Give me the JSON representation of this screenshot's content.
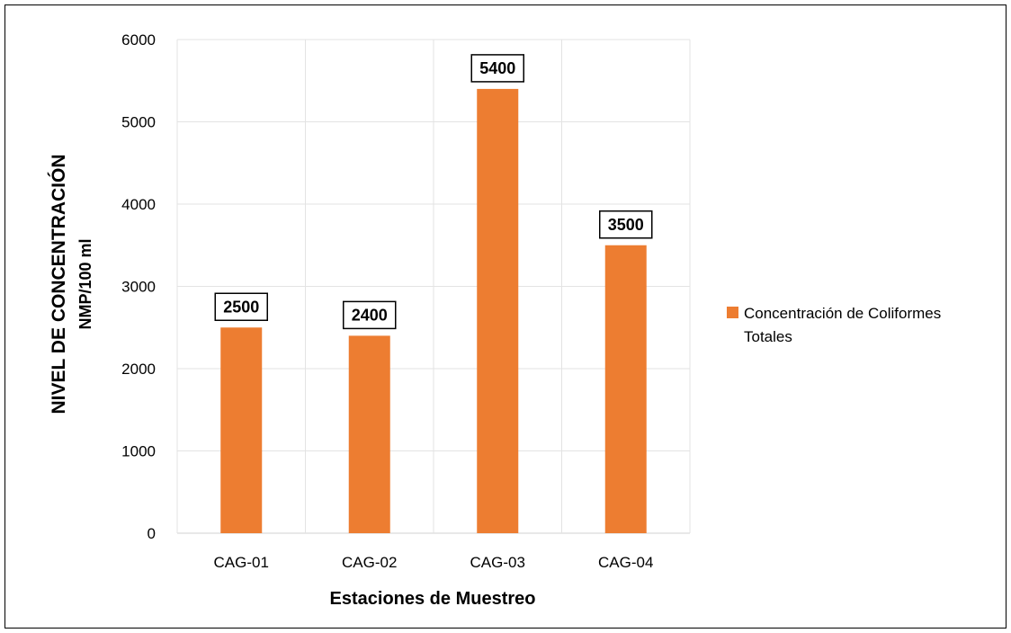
{
  "chart_data": {
    "type": "bar",
    "categories": [
      "CAG-01",
      "CAG-02",
      "CAG-03",
      "CAG-04"
    ],
    "series": [
      {
        "name": "Concentración de Coliformes Totales",
        "values": [
          2500,
          2400,
          5400,
          3500
        ],
        "color": "#ED7D31"
      }
    ],
    "data_labels": [
      "2500",
      "2400",
      "5400",
      "3500"
    ],
    "xlabel": "Estaciones de Muestreo",
    "ylabel": "NIVEL DE CONCENTRACIÓN",
    "ylabel_unit": "NMP/100 ml",
    "ylim": [
      0,
      6000
    ],
    "yticks": [
      0,
      1000,
      2000,
      3000,
      4000,
      5000,
      6000
    ],
    "ytick_labels": [
      "0",
      "1000",
      "2000",
      "3000",
      "4000",
      "5000",
      "6000"
    ],
    "grid": true,
    "legend_position": "right",
    "legend_lines": [
      "Concentración de Coliformes",
      "Totales"
    ]
  }
}
